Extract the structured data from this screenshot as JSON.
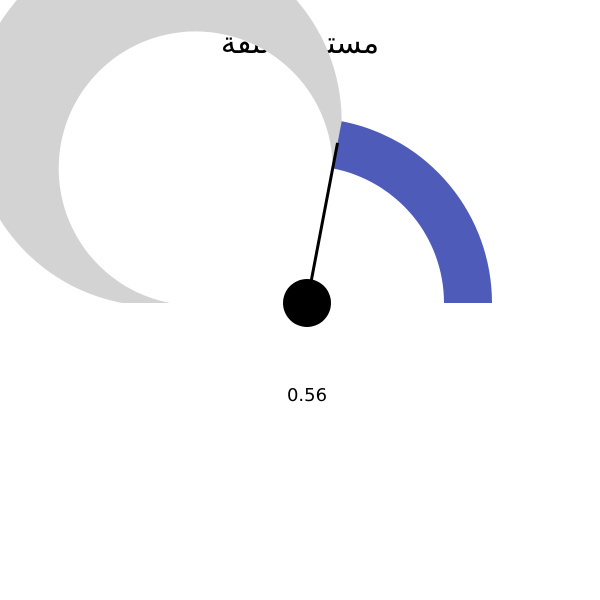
{
  "chart_data": {
    "type": "gauge",
    "title": "مستوى الثقة",
    "value": 0.56,
    "value_label": "0.56",
    "range": [
      0,
      1
    ],
    "colors": {
      "filled": "#4f5bb8",
      "track": "#d3d3d3",
      "needle": "#000000"
    }
  }
}
